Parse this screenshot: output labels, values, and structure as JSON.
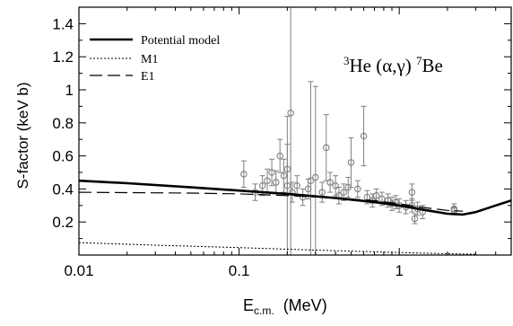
{
  "chart_data": {
    "type": "scatter",
    "title": "",
    "reaction_label": {
      "pre": "3",
      "mid": "He (α,γ)",
      "post_sup": "7",
      "post": "Be"
    },
    "xlabel": {
      "main": "E",
      "sub": "c.m.",
      "unit": "(MeV)"
    },
    "ylabel": "S-factor  (keV b)",
    "xscale": "log",
    "xlim": [
      0.01,
      5.0
    ],
    "ylim": [
      0.0,
      1.5
    ],
    "x_ticks": [
      {
        "v": 0.01,
        "label": "0.01"
      },
      {
        "v": 0.1,
        "label": "0.1"
      },
      {
        "v": 1,
        "label": "1"
      }
    ],
    "y_ticks": [
      {
        "v": 0.2,
        "label": "0.2"
      },
      {
        "v": 0.4,
        "label": "0.4"
      },
      {
        "v": 0.6,
        "label": "0.6"
      },
      {
        "v": 0.8,
        "label": "0.8"
      },
      {
        "v": 1.0,
        "label": "1"
      },
      {
        "v": 1.2,
        "label": "1.2"
      },
      {
        "v": 1.4,
        "label": "1.4"
      }
    ],
    "legend_position": "top-left",
    "series": [
      {
        "name": "Potential model",
        "style": "solid",
        "color": "#000000",
        "points": [
          [
            0.01,
            0.45
          ],
          [
            0.02,
            0.435
          ],
          [
            0.05,
            0.41
          ],
          [
            0.1,
            0.39
          ],
          [
            0.2,
            0.37
          ],
          [
            0.4,
            0.345
          ],
          [
            0.7,
            0.32
          ],
          [
            1.0,
            0.3
          ],
          [
            1.5,
            0.27
          ],
          [
            2.0,
            0.25
          ],
          [
            2.5,
            0.245
          ],
          [
            3.0,
            0.26
          ],
          [
            4.0,
            0.3
          ],
          [
            5.0,
            0.33
          ]
        ]
      },
      {
        "name": "M1",
        "style": "dotted",
        "color": "#000000",
        "points": [
          [
            0.01,
            0.075
          ],
          [
            0.03,
            0.06
          ],
          [
            0.1,
            0.045
          ],
          [
            0.3,
            0.03
          ],
          [
            1.0,
            0.015
          ],
          [
            2.0,
            0.008
          ],
          [
            3.0,
            0.005
          ]
        ]
      },
      {
        "name": "E1",
        "style": "dashed",
        "color": "#000000",
        "points": [
          [
            0.01,
            0.38
          ],
          [
            0.05,
            0.375
          ],
          [
            0.1,
            0.37
          ],
          [
            0.2,
            0.36
          ],
          [
            0.4,
            0.345
          ],
          [
            0.7,
            0.33
          ],
          [
            1.0,
            0.31
          ],
          [
            1.5,
            0.285
          ],
          [
            2.0,
            0.27
          ],
          [
            2.5,
            0.265
          ]
        ]
      },
      {
        "name": "data",
        "style": "markers",
        "color": "#808080",
        "points": [
          {
            "x": 0.107,
            "y": 0.49,
            "err": 0.08
          },
          {
            "x": 0.126,
            "y": 0.38,
            "err": 0.05
          },
          {
            "x": 0.14,
            "y": 0.42,
            "err": 0.06
          },
          {
            "x": 0.15,
            "y": 0.45,
            "err": 0.07
          },
          {
            "x": 0.16,
            "y": 0.5,
            "err": 0.08
          },
          {
            "x": 0.17,
            "y": 0.44,
            "err": 0.07
          },
          {
            "x": 0.18,
            "y": 0.6,
            "err": 0.1
          },
          {
            "x": 0.19,
            "y": 0.48,
            "err": 0.1
          },
          {
            "x": 0.2,
            "y": 0.42,
            "err": 0.42
          },
          {
            "x": 0.2,
            "y": 0.52,
            "err": 0.15
          },
          {
            "x": 0.21,
            "y": 0.86,
            "err": 1.0
          },
          {
            "x": 0.215,
            "y": 0.38,
            "err": 0.06
          },
          {
            "x": 0.23,
            "y": 0.42,
            "err": 0.06
          },
          {
            "x": 0.25,
            "y": 0.35,
            "err": 0.05
          },
          {
            "x": 0.27,
            "y": 0.4,
            "err": 0.06
          },
          {
            "x": 0.28,
            "y": 0.45,
            "err": 0.6
          },
          {
            "x": 0.3,
            "y": 0.47,
            "err": 0.55
          },
          {
            "x": 0.33,
            "y": 0.38,
            "err": 0.06
          },
          {
            "x": 0.35,
            "y": 0.65,
            "err": 0.2
          },
          {
            "x": 0.37,
            "y": 0.44,
            "err": 0.06
          },
          {
            "x": 0.4,
            "y": 0.42,
            "err": 0.06
          },
          {
            "x": 0.42,
            "y": 0.36,
            "err": 0.05
          },
          {
            "x": 0.45,
            "y": 0.38,
            "err": 0.05
          },
          {
            "x": 0.48,
            "y": 0.41,
            "err": 0.06
          },
          {
            "x": 0.5,
            "y": 0.56,
            "err": 0.15
          },
          {
            "x": 0.55,
            "y": 0.4,
            "err": 0.05
          },
          {
            "x": 0.6,
            "y": 0.72,
            "err": 0.18
          },
          {
            "x": 0.63,
            "y": 0.35,
            "err": 0.04
          },
          {
            "x": 0.68,
            "y": 0.33,
            "err": 0.04
          },
          {
            "x": 0.72,
            "y": 0.36,
            "err": 0.04
          },
          {
            "x": 0.78,
            "y": 0.34,
            "err": 0.04
          },
          {
            "x": 0.85,
            "y": 0.33,
            "err": 0.04
          },
          {
            "x": 0.9,
            "y": 0.31,
            "err": 0.04
          },
          {
            "x": 0.95,
            "y": 0.32,
            "err": 0.04
          },
          {
            "x": 1.0,
            "y": 0.3,
            "err": 0.04
          },
          {
            "x": 1.1,
            "y": 0.29,
            "err": 0.04
          },
          {
            "x": 1.2,
            "y": 0.3,
            "err": 0.04
          },
          {
            "x": 1.3,
            "y": 0.28,
            "err": 0.04
          },
          {
            "x": 1.4,
            "y": 0.26,
            "err": 0.04
          },
          {
            "x": 1.2,
            "y": 0.38,
            "err": 0.05
          },
          {
            "x": 1.25,
            "y": 0.22,
            "err": 0.03
          },
          {
            "x": 2.2,
            "y": 0.28,
            "err": 0.03
          },
          {
            "x": 2.2,
            "y": 0.27,
            "err": 0.02
          }
        ]
      }
    ]
  }
}
